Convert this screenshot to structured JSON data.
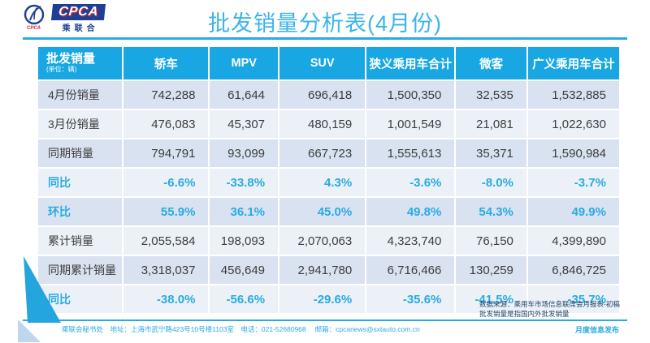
{
  "logo": {
    "abbr": "CPCA",
    "name": "乘联合",
    "emblem_small_text": "CPCA"
  },
  "title": "批发销量分析表(4月份)",
  "chart_data": {
    "type": "table",
    "title": "批发销量分析表(4月份)",
    "corner_label": "批发销量",
    "unit": "(单位：辆)",
    "columns": [
      "轿车",
      "MPV",
      "SUV",
      "狭义乘用车合计",
      "微客",
      "广义乘用车合计"
    ],
    "rows": [
      {
        "label": "4月份销量",
        "style": "number",
        "values": [
          "742,288",
          "61,644",
          "696,418",
          "1,500,350",
          "32,535",
          "1,532,885"
        ]
      },
      {
        "label": "3月份销量",
        "style": "number",
        "values": [
          "476,083",
          "45,307",
          "480,159",
          "1,001,549",
          "21,081",
          "1,022,630"
        ]
      },
      {
        "label": "同期销量",
        "style": "number",
        "values": [
          "794,791",
          "93,099",
          "667,723",
          "1,555,613",
          "35,371",
          "1,590,984"
        ]
      },
      {
        "label": "同比",
        "style": "percent",
        "values": [
          "-6.6%",
          "-33.8%",
          "4.3%",
          "-3.6%",
          "-8.0%",
          "-3.7%"
        ]
      },
      {
        "label": "环比",
        "style": "percent",
        "values": [
          "55.9%",
          "36.1%",
          "45.0%",
          "49.8%",
          "54.3%",
          "49.9%"
        ]
      },
      {
        "label": "累计销量",
        "style": "number",
        "values": [
          "2,055,584",
          "198,093",
          "2,070,063",
          "4,323,740",
          "76,150",
          "4,399,890"
        ]
      },
      {
        "label": "同期累计销量",
        "style": "number",
        "values": [
          "3,318,037",
          "456,649",
          "2,941,780",
          "6,716,466",
          "130,259",
          "6,846,725"
        ]
      },
      {
        "label": "同比",
        "style": "percent",
        "values": [
          "-38.0%",
          "-56.6%",
          "-29.6%",
          "-35.6%",
          "-41.5%",
          "-35.7%"
        ]
      }
    ]
  },
  "notes": [
    "数据来源：乘用车市场信息联席会月报表-初稿",
    "批发销量是指国内外批发销量"
  ],
  "footer": {
    "left": "乘联会秘书处　地址：上海市武宁路423号10号楼1103室　电话：021-52680968　 邮箱：cpcanews@sxtauto.com.cn",
    "right": "月度信息发布"
  },
  "colors": {
    "accent": "#29abe2",
    "header_bg": "#18a7e2",
    "row_dark": "#d9e2f0",
    "row_light": "#ecf1f8",
    "note_text": "#1f4468",
    "logo_navy": "#1e3f94",
    "logo_red": "#c0272d"
  }
}
